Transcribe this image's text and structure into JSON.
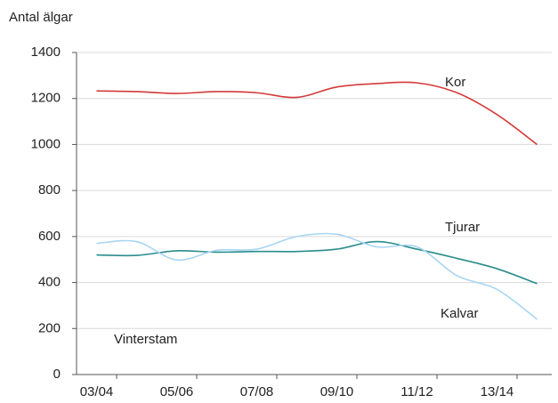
{
  "chart_data": {
    "type": "line",
    "y_label": "Antal älgar",
    "annotation": "Vinterstam",
    "categories": [
      "03/04",
      null,
      "05/06",
      null,
      "07/08",
      null,
      "09/10",
      null,
      "11/12",
      null,
      "13/14",
      null
    ],
    "series": [
      {
        "name": "Kor",
        "color": "#d43a3a",
        "values": [
          1233,
          1230,
          1222,
          1230,
          1225,
          1205,
          1250,
          1265,
          1268,
          1225,
          1130,
          1000
        ]
      },
      {
        "name": "Tjurar",
        "color": "#2a8c8c",
        "values": [
          520,
          518,
          538,
          532,
          535,
          535,
          545,
          578,
          545,
          505,
          460,
          395
        ]
      },
      {
        "name": "Kalvar",
        "color": "#a8d5f2",
        "values": [
          570,
          578,
          498,
          540,
          545,
          600,
          610,
          555,
          555,
          430,
          370,
          240
        ]
      }
    ],
    "ylim": [
      0,
      1400
    ],
    "yticks": [
      0,
      200,
      400,
      600,
      800,
      1000,
      1200,
      1400
    ],
    "grid": true
  }
}
